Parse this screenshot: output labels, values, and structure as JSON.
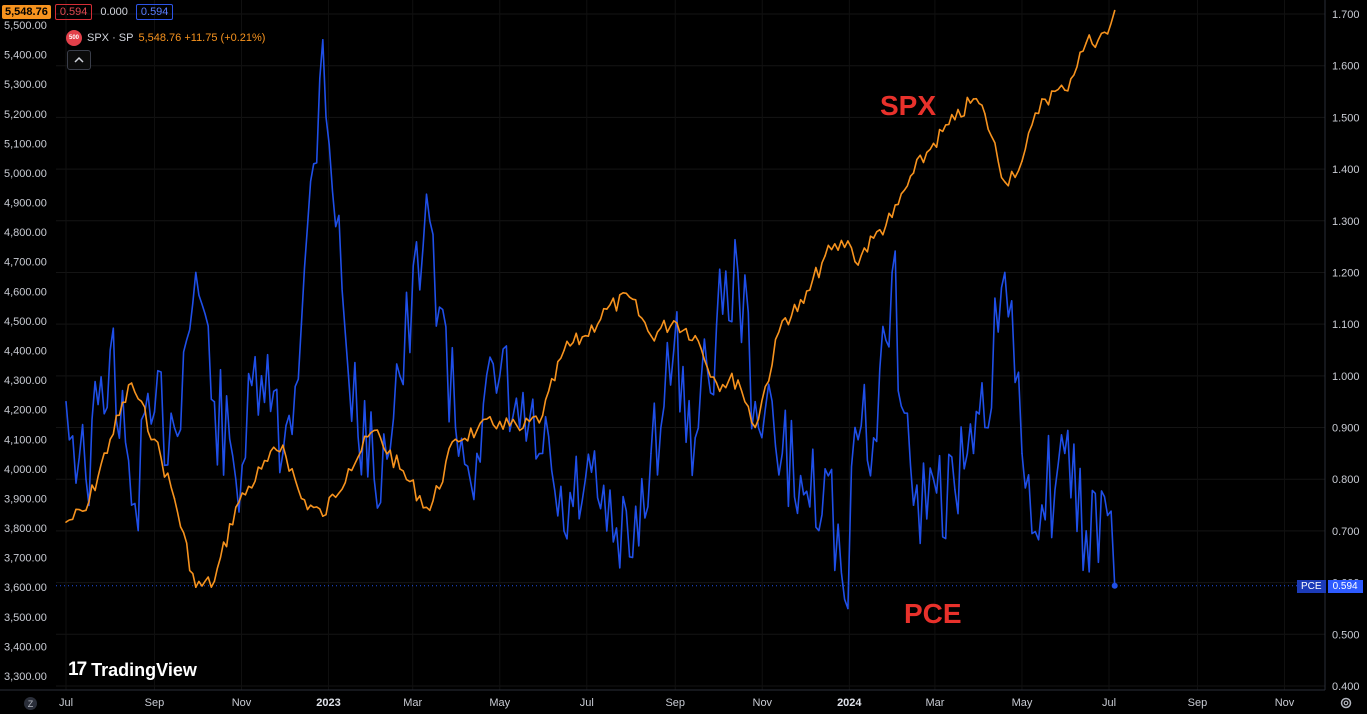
{
  "header": {
    "spx_price": "5,548.76",
    "pce_box_red": "0.594",
    "zero_value": "0.000",
    "pce_box_blue": "0.594"
  },
  "legend": {
    "badge": "500",
    "symbol": "SPX · SP",
    "values": "5,548.76 +11.75 (+0.21%)"
  },
  "collapse_icon": "chevron-up-icon",
  "logo": {
    "mark": "17",
    "text": "TradingView"
  },
  "bottom_left_button": "Z",
  "settings_icon": "gear-icon",
  "pce_tag": {
    "name": "PCE",
    "value": "0.594"
  },
  "annotations": {
    "spx": "SPX",
    "pce": "PCE"
  },
  "colors": {
    "spx": "#f7931e",
    "pce": "#1f4fe8",
    "annotation": "#e8312b",
    "background": "#000000"
  },
  "chart_data": {
    "type": "line",
    "x_ticks": [
      "Jul",
      "Sep",
      "Nov",
      "2023",
      "Mar",
      "May",
      "Jul",
      "Sep",
      "Nov",
      "2024",
      "Mar",
      "May",
      "Jul",
      "Sep",
      "Nov"
    ],
    "year_ticks": [
      "2023",
      "2024"
    ],
    "left_axis": {
      "ylim": [
        3300,
        5500
      ],
      "ticks": [
        "3,300.00",
        "3,400.00",
        "3,500.00",
        "3,600.00",
        "3,700.00",
        "3,800.00",
        "3,900.00",
        "4,000.00",
        "4,100.00",
        "4,200.00",
        "4,300.00",
        "4,400.00",
        "4,500.00",
        "4,600.00",
        "4,700.00",
        "4,800.00",
        "4,900.00",
        "5,000.00",
        "5,100.00",
        "5,200.00",
        "5,300.00",
        "5,400.00",
        "5,500.00"
      ]
    },
    "right_axis": {
      "ylim": [
        0.4,
        1.7
      ],
      "ticks": [
        "0.400",
        "0.500",
        "0.600",
        "0.700",
        "0.800",
        "0.900",
        "1.000",
        "1.100",
        "1.200",
        "1.300",
        "1.400",
        "1.500",
        "1.600",
        "1.700"
      ]
    },
    "series": [
      {
        "name": "SPX",
        "axis": "left",
        "x": [
          "2022-07-01",
          "2022-07-15",
          "2022-08-01",
          "2022-08-16",
          "2022-09-01",
          "2022-09-15",
          "2022-09-30",
          "2022-10-13",
          "2022-10-28",
          "2022-11-15",
          "2022-11-30",
          "2022-12-13",
          "2022-12-28",
          "2023-01-15",
          "2023-02-02",
          "2023-02-20",
          "2023-03-13",
          "2023-03-31",
          "2023-04-15",
          "2023-05-01",
          "2023-05-15",
          "2023-05-31",
          "2023-06-15",
          "2023-06-30",
          "2023-07-15",
          "2023-07-31",
          "2023-08-15",
          "2023-08-31",
          "2023-09-15",
          "2023-09-30",
          "2023-10-15",
          "2023-10-27",
          "2023-11-15",
          "2023-11-30",
          "2023-12-15",
          "2023-12-31",
          "2024-01-05",
          "2024-01-18",
          "2024-01-31",
          "2024-02-15",
          "2024-02-29",
          "2024-03-15",
          "2024-03-28",
          "2024-04-05",
          "2024-04-19",
          "2024-05-01",
          "2024-05-15",
          "2024-05-31",
          "2024-06-15",
          "2024-06-30",
          "2024-07-05"
        ],
        "values": [
          3820,
          3860,
          4100,
          4290,
          4100,
          3900,
          3600,
          3620,
          3870,
          4000,
          4080,
          3900,
          3840,
          4000,
          4130,
          4000,
          3860,
          4100,
          4130,
          4160,
          4130,
          4180,
          4400,
          4450,
          4540,
          4580,
          4450,
          4500,
          4450,
          4290,
          4300,
          4140,
          4500,
          4560,
          4720,
          4770,
          4700,
          4780,
          4850,
          5000,
          5100,
          5180,
          5250,
          5200,
          4970,
          5040,
          5250,
          5280,
          5440,
          5470,
          5548.76
        ]
      },
      {
        "name": "PCE",
        "axis": "right",
        "x": [
          "2022-07-01",
          "2022-07-15",
          "2022-08-01",
          "2022-08-16",
          "2022-09-01",
          "2022-09-15",
          "2022-09-30",
          "2022-10-13",
          "2022-10-28",
          "2022-11-15",
          "2022-11-30",
          "2022-12-13",
          "2022-12-28",
          "2023-01-15",
          "2023-02-02",
          "2023-02-20",
          "2023-03-13",
          "2023-03-31",
          "2023-04-15",
          "2023-05-01",
          "2023-05-15",
          "2023-05-31",
          "2023-06-15",
          "2023-06-30",
          "2023-07-15",
          "2023-07-31",
          "2023-08-15",
          "2023-08-31",
          "2023-09-15",
          "2023-09-30",
          "2023-10-15",
          "2023-10-27",
          "2023-11-15",
          "2023-11-30",
          "2023-12-15",
          "2023-12-31",
          "2024-01-05",
          "2024-01-18",
          "2024-01-31",
          "2024-02-15",
          "2024-02-29",
          "2024-03-15",
          "2024-03-28",
          "2024-04-05",
          "2024-04-19",
          "2024-05-01",
          "2024-05-15",
          "2024-05-31",
          "2024-06-15",
          "2024-06-30",
          "2024-07-05"
        ],
        "values": [
          0.95,
          0.8,
          1.05,
          0.75,
          0.93,
          0.9,
          1.2,
          0.95,
          0.8,
          1.0,
          0.85,
          1.1,
          1.65,
          1.0,
          0.8,
          1.0,
          1.3,
          0.9,
          0.85,
          1.0,
          0.9,
          0.85,
          0.7,
          0.8,
          0.7,
          0.65,
          0.85,
          1.05,
          0.88,
          1.1,
          1.2,
          0.95,
          0.85,
          0.77,
          0.82,
          0.55,
          0.9,
          0.88,
          1.2,
          0.75,
          0.8,
          0.78,
          0.85,
          0.9,
          1.2,
          0.85,
          0.75,
          0.85,
          0.7,
          0.73,
          0.594
        ]
      }
    ],
    "last_values": {
      "SPX": 5548.76,
      "PCE": 0.594
    },
    "grid": true,
    "legend_placement": "top-left"
  }
}
